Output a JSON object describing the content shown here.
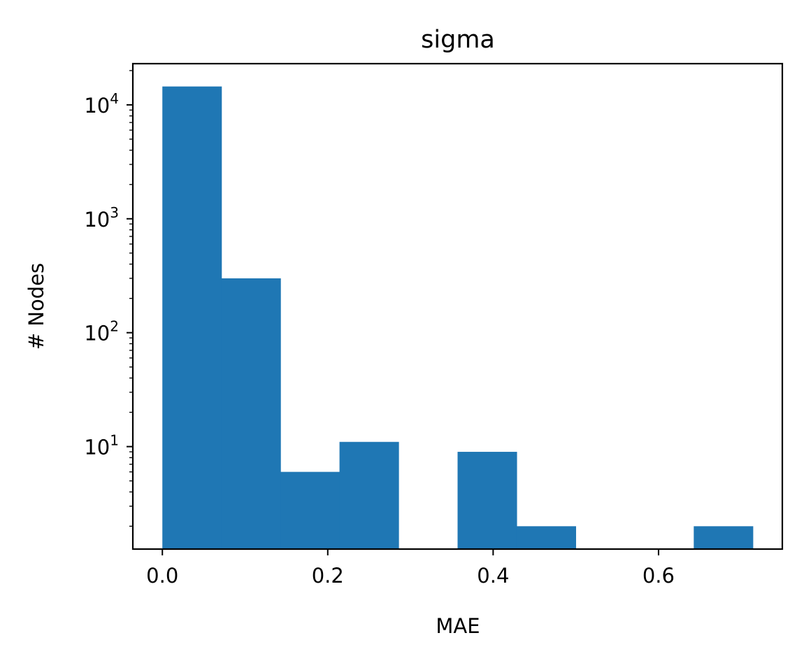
{
  "chart_data": {
    "type": "bar",
    "title": "sigma",
    "xlabel": "MAE",
    "ylabel": "# Nodes",
    "yscale": "log",
    "xlim": [
      -0.0357,
      0.7497
    ],
    "ylim": [
      1.26,
      23000
    ],
    "grid": false,
    "bar_color": "#1f77b4",
    "bins": [
      {
        "x0": 0.0,
        "x1": 0.0714,
        "count": 14500
      },
      {
        "x0": 0.0714,
        "x1": 0.1428,
        "count": 300
      },
      {
        "x0": 0.1428,
        "x1": 0.2142,
        "count": 6
      },
      {
        "x0": 0.2142,
        "x1": 0.2856,
        "count": 11
      },
      {
        "x0": 0.2856,
        "x1": 0.357,
        "count": 0
      },
      {
        "x0": 0.357,
        "x1": 0.4284,
        "count": 9
      },
      {
        "x0": 0.4284,
        "x1": 0.4998,
        "count": 2
      },
      {
        "x0": 0.4998,
        "x1": 0.5712,
        "count": 0
      },
      {
        "x0": 0.5712,
        "x1": 0.6426,
        "count": 0
      },
      {
        "x0": 0.6426,
        "x1": 0.714,
        "count": 2
      }
    ],
    "x_ticks": [
      {
        "value": 0.0,
        "label": "0.0"
      },
      {
        "value": 0.2,
        "label": "0.2"
      },
      {
        "value": 0.4,
        "label": "0.4"
      },
      {
        "value": 0.6,
        "label": "0.6"
      }
    ],
    "y_ticks": [
      {
        "value": 10,
        "base": "10",
        "exp": "1"
      },
      {
        "value": 100,
        "base": "10",
        "exp": "2"
      },
      {
        "value": 1000,
        "base": "10",
        "exp": "3"
      },
      {
        "value": 10000,
        "base": "10",
        "exp": "4"
      }
    ]
  }
}
